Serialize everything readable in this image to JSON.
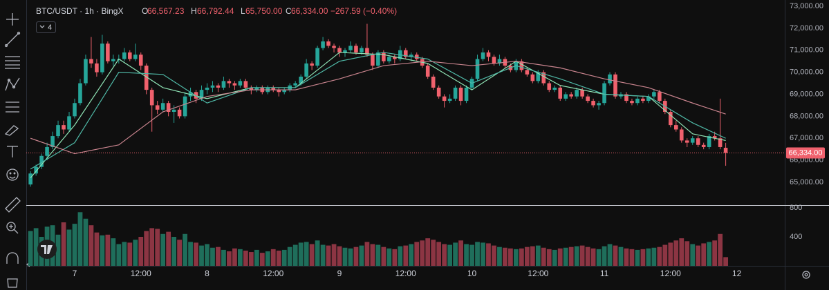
{
  "header": {
    "symbol": "BTC/USDT · 1h · BingX",
    "fields": [
      {
        "label": "O",
        "value": "66,567.23"
      },
      {
        "label": "H",
        "value": "66,792.44"
      },
      {
        "label": "L",
        "value": "65,750.00"
      },
      {
        "label": "C",
        "value": "66,334.00"
      }
    ],
    "change": "−267.59 (−0.40%)",
    "indicator_count": "4"
  },
  "chart_data": [
    {
      "type": "candlestick",
      "up_color": "#26a69a",
      "down_color": "#f0616d",
      "xlim": [
        -0.77,
        136.7
      ],
      "ylim": [
        63965,
        73282
      ],
      "grid": false,
      "yticks": [
        {
          "value": 65000,
          "label": "65,000.00"
        },
        {
          "value": 66000,
          "label": "66,000.00"
        },
        {
          "value": 67000,
          "label": "67,000.00"
        },
        {
          "value": 68000,
          "label": "68,000.00"
        },
        {
          "value": 69000,
          "label": "69,000.00"
        },
        {
          "value": 70000,
          "label": "70,000.00"
        },
        {
          "value": 71000,
          "label": "71,000.00"
        },
        {
          "value": 72000,
          "label": "72,000.00"
        },
        {
          "value": 73000,
          "label": "73,000.00"
        }
      ],
      "xticks": [
        {
          "value": 8,
          "label": "7"
        },
        {
          "value": 20,
          "label": "12:00"
        },
        {
          "value": 32,
          "label": "8"
        },
        {
          "value": 44,
          "label": "12:00"
        },
        {
          "value": 56,
          "label": "9"
        },
        {
          "value": 68,
          "label": "12:00"
        },
        {
          "value": 80,
          "label": "10"
        },
        {
          "value": 92,
          "label": "12:00"
        },
        {
          "value": 104,
          "label": "11"
        },
        {
          "value": 116,
          "label": "12:00"
        },
        {
          "value": 128,
          "label": "12"
        }
      ],
      "last_price": 66334,
      "last_price_label": "66,334.00",
      "ohlc": [
        [
          64900,
          65500,
          64800,
          65400
        ],
        [
          65400,
          65800,
          65300,
          65700
        ],
        [
          65700,
          66300,
          65600,
          66200
        ],
        [
          66200,
          66800,
          66000,
          66600
        ],
        [
          66600,
          67300,
          66500,
          67100
        ],
        [
          67100,
          67800,
          67000,
          67600
        ],
        [
          67600,
          67800,
          67200,
          67400
        ],
        [
          67400,
          68200,
          67300,
          68000
        ],
        [
          68000,
          68800,
          67900,
          68600
        ],
        [
          68600,
          69700,
          68500,
          69500
        ],
        [
          69500,
          70800,
          69400,
          70600
        ],
        [
          70600,
          71600,
          70200,
          70400
        ],
        [
          70400,
          70600,
          69800,
          70000
        ],
        [
          70000,
          71700,
          69900,
          71300
        ],
        [
          71300,
          71400,
          70400,
          70500
        ],
        [
          70500,
          70800,
          70300,
          70600
        ],
        [
          70600,
          70800,
          70400,
          70600
        ],
        [
          70600,
          71100,
          70500,
          70900
        ],
        [
          70900,
          71000,
          70500,
          70600
        ],
        [
          70600,
          71300,
          70500,
          70800
        ],
        [
          70800,
          70900,
          70100,
          70300
        ],
        [
          70300,
          70400,
          69000,
          69200
        ],
        [
          69200,
          69300,
          67300,
          68500
        ],
        [
          68500,
          68700,
          68100,
          68300
        ],
        [
          68300,
          68800,
          68200,
          68600
        ],
        [
          68600,
          68700,
          68000,
          68200
        ],
        [
          68200,
          68500,
          67700,
          68300
        ],
        [
          68300,
          68400,
          67900,
          68000
        ],
        [
          68000,
          69100,
          67900,
          68900
        ],
        [
          68900,
          69300,
          68700,
          69100
        ],
        [
          69100,
          69200,
          68600,
          68800
        ],
        [
          68800,
          69400,
          68700,
          69200
        ],
        [
          69200,
          69500,
          69000,
          69300
        ],
        [
          69300,
          69600,
          69100,
          69400
        ],
        [
          69400,
          69500,
          69100,
          69300
        ],
        [
          69300,
          69800,
          69200,
          69600
        ],
        [
          69600,
          69700,
          69300,
          69500
        ],
        [
          69500,
          69600,
          69200,
          69400
        ],
        [
          69400,
          69700,
          69300,
          69600
        ],
        [
          69600,
          69700,
          69200,
          69300
        ],
        [
          69300,
          69400,
          69000,
          69200
        ],
        [
          69200,
          69400,
          69100,
          69300
        ],
        [
          69300,
          69400,
          69000,
          69100
        ],
        [
          69100,
          69400,
          69000,
          69300
        ],
        [
          69300,
          69400,
          69100,
          69200
        ],
        [
          69200,
          69300,
          68900,
          69100
        ],
        [
          69100,
          69300,
          69000,
          69200
        ],
        [
          69200,
          69500,
          69100,
          69400
        ],
        [
          69400,
          69600,
          69300,
          69500
        ],
        [
          69500,
          69900,
          69400,
          69800
        ],
        [
          69800,
          70600,
          69700,
          70400
        ],
        [
          70400,
          70500,
          70100,
          70300
        ],
        [
          70300,
          71200,
          70200,
          71100
        ],
        [
          71100,
          71600,
          71000,
          71400
        ],
        [
          71400,
          71500,
          71100,
          71200
        ],
        [
          71200,
          71300,
          70900,
          71100
        ],
        [
          71100,
          71200,
          70700,
          70900
        ],
        [
          70900,
          71100,
          70700,
          71000
        ],
        [
          71000,
          71400,
          70900,
          71200
        ],
        [
          71200,
          71300,
          70800,
          70900
        ],
        [
          70900,
          71200,
          70800,
          71100
        ],
        [
          71100,
          72200,
          70700,
          70800
        ],
        [
          70800,
          70900,
          70100,
          70300
        ],
        [
          70300,
          71000,
          70200,
          70900
        ],
        [
          70900,
          71000,
          70400,
          70500
        ],
        [
          70500,
          70800,
          70400,
          70700
        ],
        [
          70700,
          70800,
          70400,
          70600
        ],
        [
          70600,
          71200,
          70500,
          71000
        ],
        [
          71000,
          71100,
          70600,
          70700
        ],
        [
          70700,
          70900,
          70500,
          70800
        ],
        [
          70800,
          70900,
          70500,
          70600
        ],
        [
          70600,
          70700,
          70200,
          70300
        ],
        [
          70300,
          70400,
          69700,
          69800
        ],
        [
          69800,
          69900,
          69200,
          69300
        ],
        [
          69300,
          69400,
          68800,
          68900
        ],
        [
          68900,
          69000,
          68400,
          68700
        ],
        [
          68700,
          69000,
          68600,
          68800
        ],
        [
          68800,
          69400,
          68700,
          69300
        ],
        [
          69300,
          69400,
          68500,
          68700
        ],
        [
          68700,
          69400,
          68600,
          69300
        ],
        [
          69300,
          69800,
          69200,
          69700
        ],
        [
          69700,
          70800,
          69600,
          70600
        ],
        [
          70600,
          71100,
          70500,
          70900
        ],
        [
          70900,
          71000,
          70500,
          70700
        ],
        [
          70700,
          70800,
          70300,
          70400
        ],
        [
          70400,
          70800,
          70300,
          70600
        ],
        [
          70600,
          70700,
          70200,
          70300
        ],
        [
          70300,
          70400,
          70000,
          70100
        ],
        [
          70100,
          70600,
          70000,
          70500
        ],
        [
          70500,
          70600,
          70000,
          70100
        ],
        [
          70100,
          70200,
          69800,
          69900
        ],
        [
          69900,
          70000,
          69500,
          69600
        ],
        [
          69600,
          70100,
          69500,
          70000
        ],
        [
          70000,
          70100,
          69400,
          69500
        ],
        [
          69500,
          69600,
          69100,
          69200
        ],
        [
          69200,
          69400,
          69100,
          69300
        ],
        [
          69300,
          69400,
          68700,
          68800
        ],
        [
          68800,
          69100,
          68700,
          69000
        ],
        [
          69000,
          69100,
          68800,
          68900
        ],
        [
          68900,
          69300,
          68800,
          69200
        ],
        [
          69200,
          69300,
          68800,
          68900
        ],
        [
          68900,
          69000,
          68600,
          68700
        ],
        [
          68700,
          68800,
          68400,
          68500
        ],
        [
          68500,
          68700,
          68300,
          68600
        ],
        [
          68600,
          69600,
          68500,
          69500
        ],
        [
          69500,
          70000,
          69400,
          69900
        ],
        [
          69900,
          70000,
          68800,
          68900
        ],
        [
          68900,
          69100,
          68800,
          69000
        ],
        [
          69000,
          69100,
          68600,
          68700
        ],
        [
          68700,
          68800,
          68500,
          68600
        ],
        [
          68600,
          68900,
          68500,
          68800
        ],
        [
          68800,
          68900,
          68600,
          68700
        ],
        [
          68700,
          69000,
          68600,
          68900
        ],
        [
          68900,
          69200,
          68800,
          69100
        ],
        [
          69100,
          69200,
          68600,
          68700
        ],
        [
          68700,
          68800,
          68100,
          68200
        ],
        [
          68200,
          68300,
          67500,
          67600
        ],
        [
          67600,
          67800,
          67300,
          67400
        ],
        [
          67400,
          67500,
          66800,
          66900
        ],
        [
          66900,
          67000,
          66600,
          66800
        ],
        [
          66800,
          67100,
          66700,
          67000
        ],
        [
          67000,
          67100,
          66600,
          66700
        ],
        [
          66700,
          66800,
          66500,
          66600
        ],
        [
          66600,
          67200,
          66500,
          67100
        ],
        [
          67100,
          67300,
          66900,
          67000
        ],
        [
          67000,
          68800,
          66500,
          66601.59
        ],
        [
          66567.23,
          66792.44,
          65750,
          66334
        ]
      ],
      "series": [
        {
          "color": "#8fe3b5",
          "x": [
            0,
            8,
            16,
            24,
            32,
            40,
            48,
            56,
            64,
            72,
            80,
            88,
            96,
            104,
            112,
            120,
            126
          ],
          "values": [
            65200,
            67600,
            70600,
            69300,
            68800,
            69300,
            69300,
            70900,
            70800,
            70400,
            69200,
            70500,
            69400,
            69000,
            68900,
            67200,
            66900
          ]
        },
        {
          "color": "#4fb8a6",
          "x": [
            0,
            8,
            16,
            24,
            32,
            40,
            48,
            56,
            64,
            72,
            80,
            88,
            96,
            104,
            112,
            120,
            126
          ],
          "values": [
            65600,
            66800,
            70000,
            69900,
            68600,
            69300,
            69300,
            70500,
            70900,
            70600,
            69500,
            70300,
            69700,
            69000,
            68900,
            67700,
            67000
          ]
        },
        {
          "color": "#c9848e",
          "x": [
            0,
            8,
            16,
            24,
            32,
            40,
            48,
            56,
            64,
            72,
            80,
            88,
            96,
            104,
            112,
            120,
            126
          ],
          "values": [
            67000,
            66300,
            66700,
            68200,
            68900,
            69200,
            69200,
            69700,
            70300,
            70500,
            70300,
            70500,
            70200,
            69700,
            69300,
            68600,
            68100
          ]
        }
      ]
    },
    {
      "type": "bar",
      "up_color": "#1f6e5b",
      "down_color": "#8c3543",
      "xlim": [
        -0.77,
        136.7
      ],
      "ylim": [
        0,
        819
      ],
      "yticks": [
        400,
        800
      ],
      "values": [
        480,
        520,
        400,
        540,
        560,
        430,
        600,
        500,
        580,
        740,
        650,
        560,
        460,
        420,
        430,
        380,
        300,
        330,
        320,
        360,
        400,
        480,
        520,
        510,
        440,
        470,
        400,
        360,
        440,
        330,
        320,
        280,
        300,
        250,
        260,
        220,
        200,
        240,
        230,
        210,
        190,
        220,
        180,
        200,
        230,
        210,
        220,
        260,
        290,
        320,
        330,
        300,
        350,
        290,
        280,
        300,
        270,
        250,
        240,
        260,
        280,
        330,
        300,
        290,
        260,
        240,
        230,
        270,
        280,
        300,
        330,
        350,
        380,
        360,
        330,
        300,
        290,
        320,
        350,
        300,
        290,
        330,
        320,
        310,
        280,
        260,
        250,
        240,
        230,
        240,
        260,
        270,
        280,
        250,
        230,
        220,
        240,
        250,
        260,
        270,
        280,
        260,
        240,
        230,
        270,
        300,
        280,
        260,
        240,
        230,
        220,
        230,
        240,
        250,
        260,
        290,
        320,
        350,
        380,
        340,
        300,
        280,
        310,
        330,
        350,
        440,
        120
      ]
    }
  ]
}
